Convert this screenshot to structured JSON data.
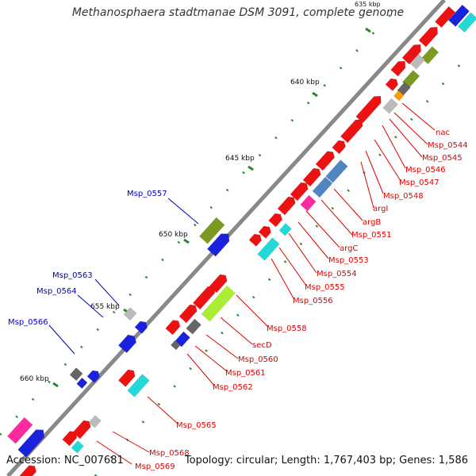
{
  "title": "Methanosphaera stadtmanae DSM 3091, complete genome",
  "accession": "Accession: NC_007681",
  "summary": "Topology: circular; Length: 1,767,403 bp; Genes: 1,586",
  "scale_labels": [
    "635 kbp",
    "640 kbp",
    "645 kbp",
    "650 kbp",
    "655 kbp",
    "660 kbp"
  ],
  "colors": {
    "red": "#ee1111",
    "blue": "#1a22dd",
    "cyan": "#22d8d8",
    "olive": "#7a9a22",
    "gray": "#bbbbbb",
    "darkgray": "#666666",
    "pink": "#ff2aa0",
    "steel": "#4f86bf",
    "lime": "#aaee33",
    "orange": "#ff9900",
    "label_red": "#dd0000",
    "label_blue": "#0000bb"
  },
  "labels_right": [
    "nac",
    "Msp_0544",
    "Msp_0545",
    "Msp_0546",
    "Msp_0547",
    "Msp_0548",
    "argI",
    "argB",
    "Msp_0551",
    "argC",
    "Msp_0553",
    "Msp_0554",
    "Msp_0555",
    "Msp_0556",
    "Msp_0558",
    "secD",
    "Msp_0560",
    "Msp_0561",
    "Msp_0562",
    "Msp_0565",
    "Msp_0568",
    "Msp_0569"
  ],
  "labels_left": [
    "Msp_0557",
    "Msp_0563",
    "Msp_0564",
    "Msp_0566"
  ]
}
